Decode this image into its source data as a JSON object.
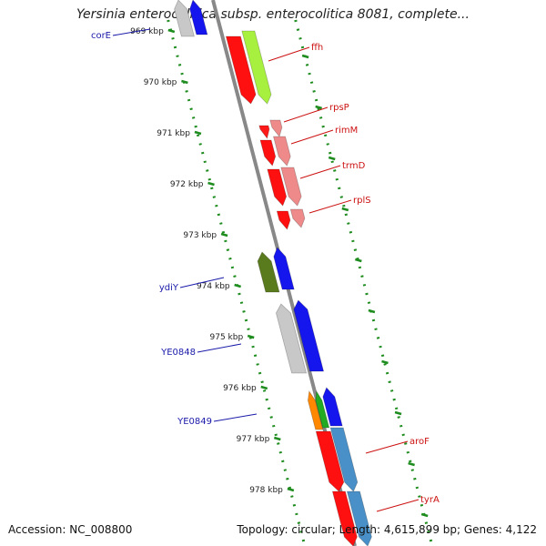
{
  "title": "Yersinia enterocolitica subsp. enterocolitica 8081, complete...",
  "footer": {
    "accession": "Accession: NC_008800",
    "stats": "Topology: circular; Length: 4,615,899 bp; Genes: 4,122"
  },
  "colors": {
    "backbone": "#888888",
    "tick": "#1e8c1e",
    "label_forward": "#1a1aaa",
    "label_reverse": "#cc1111"
  },
  "ticks": [
    "969 kbp",
    "970 kbp",
    "971 kbp",
    "972 kbp",
    "973 kbp",
    "974 kbp",
    "975 kbp",
    "976 kbp",
    "977 kbp",
    "978 kbp"
  ],
  "genes": [
    {
      "name": "corE",
      "strand": "+",
      "labeled": true
    },
    {
      "name": "ffh",
      "strand": "-",
      "labeled": true
    },
    {
      "name": "rpsP",
      "strand": "-",
      "labeled": true
    },
    {
      "name": "rimM",
      "strand": "-",
      "labeled": true
    },
    {
      "name": "trmD",
      "strand": "-",
      "labeled": true
    },
    {
      "name": "rplS",
      "strand": "-",
      "labeled": true
    },
    {
      "name": "ydiY",
      "strand": "+",
      "labeled": true
    },
    {
      "name": "YE0848",
      "strand": "+",
      "labeled": true
    },
    {
      "name": "YE0849",
      "strand": "+",
      "labeled": true
    },
    {
      "name": "aroF",
      "strand": "-",
      "labeled": true
    },
    {
      "name": "tyrA",
      "strand": "-",
      "labeled": true
    }
  ]
}
